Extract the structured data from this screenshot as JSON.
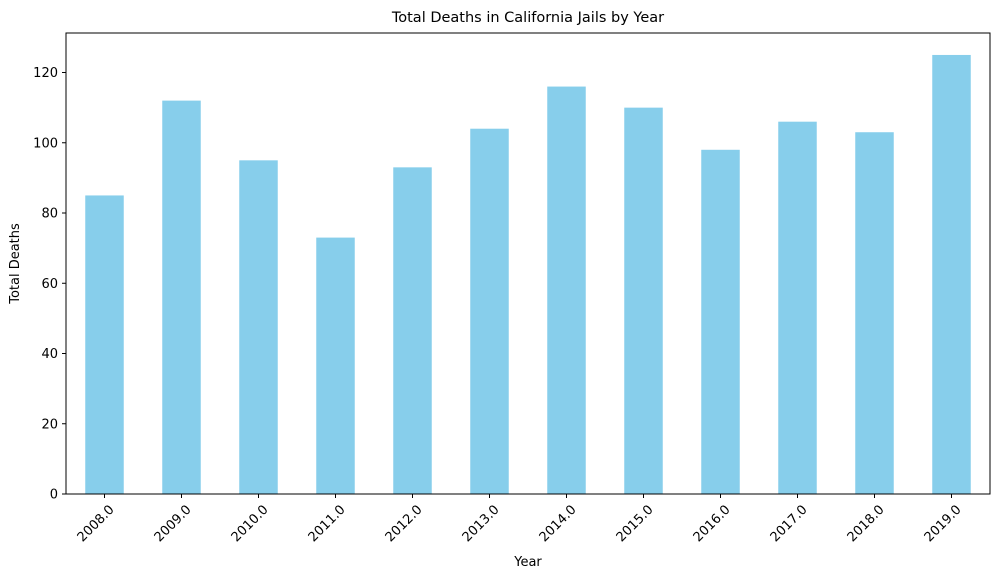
{
  "chart_data": {
    "type": "bar",
    "title": "Total Deaths in California Jails by Year",
    "xlabel": "Year",
    "ylabel": "Total Deaths",
    "categories": [
      "2008.0",
      "2009.0",
      "2010.0",
      "2011.0",
      "2012.0",
      "2013.0",
      "2014.0",
      "2015.0",
      "2016.0",
      "2017.0",
      "2018.0",
      "2019.0"
    ],
    "values": [
      85,
      112,
      95,
      73,
      93,
      104,
      116,
      110,
      98,
      106,
      103,
      125
    ],
    "ylim": [
      0,
      131.25
    ],
    "yticks": [
      0,
      20,
      40,
      60,
      80,
      100,
      120
    ],
    "ytick_labels": [
      "0",
      "20",
      "40",
      "60",
      "80",
      "100",
      "120"
    ],
    "bar_color": "#87ceeb",
    "grid": false,
    "legend": "none",
    "xtick_rotation": 45
  }
}
